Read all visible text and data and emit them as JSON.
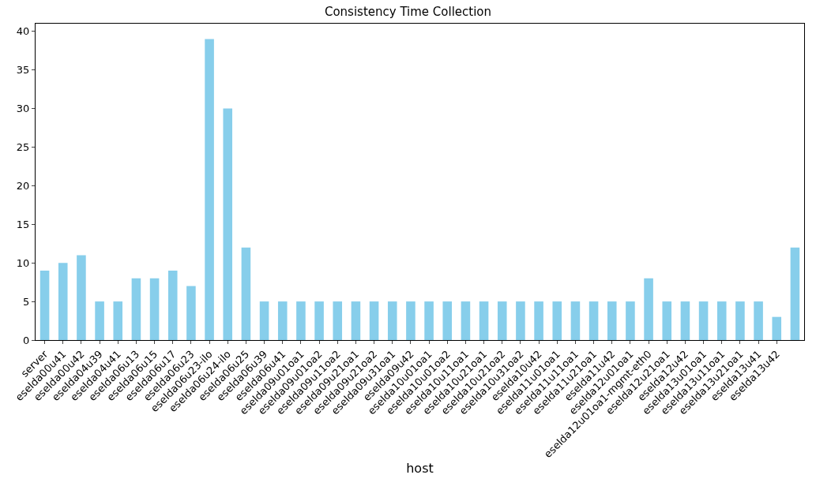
{
  "chart_data": {
    "type": "bar",
    "title": "Consistency Time Collection",
    "xlabel": "host",
    "categories": [
      "server",
      "eselda00u41",
      "eselda00u42",
      "eselda04u39",
      "eselda04u41",
      "eselda06u13",
      "eselda06u15",
      "eselda06u17",
      "eselda06u23",
      "eselda06u23-ilo",
      "eselda06u24-ilo",
      "eselda06u25",
      "eselda06u39",
      "eselda06u41",
      "eselda09u01oa1",
      "eselda09u01oa2",
      "eselda09u11oa2",
      "eselda09u21oa1",
      "eselda09u21oa2",
      "eselda09u31oa1",
      "eselda09u42",
      "eselda10u01oa1",
      "eselda10u01oa2",
      "eselda10u11oa1",
      "eselda10u21oa1",
      "eselda10u21oa2",
      "eselda10u31oa2",
      "eselda10u42",
      "eselda11u01oa1",
      "eselda11u11oa1",
      "eselda11u21oa1",
      "eselda11u42",
      "eselda12u01oa1",
      "eselda12u01oa1-mgmt-eth0",
      "eselda12u21oa1",
      "eselda12u42",
      "eselda13u01oa1",
      "eselda13u11oa1",
      "eselda13u21oa1",
      "eselda13u41",
      "eselda13u42",
      null
    ],
    "values": [
      9,
      10,
      11,
      5,
      5,
      8,
      8,
      9,
      7,
      39,
      30,
      12,
      5,
      5,
      5,
      5,
      5,
      5,
      5,
      5,
      5,
      5,
      5,
      5,
      5,
      5,
      5,
      5,
      5,
      5,
      5,
      5,
      5,
      8,
      5,
      5,
      5,
      5,
      5,
      5,
      3,
      12
    ],
    "color": "#87ceeb",
    "ylim": [
      0,
      41
    ],
    "yticks": [
      0,
      5,
      10,
      15,
      20,
      25,
      30,
      35,
      40
    ]
  }
}
